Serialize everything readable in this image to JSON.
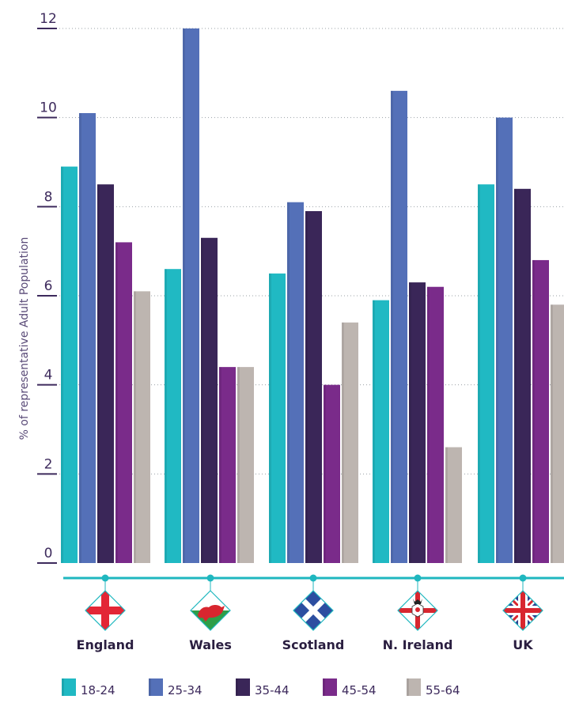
{
  "chart_data": {
    "type": "bar",
    "ylabel": "% of representative Adult Population",
    "ylim": [
      0,
      12
    ],
    "yticks": [
      0,
      2,
      4,
      6,
      8,
      10,
      12
    ],
    "grid": true,
    "legend_position": "bottom",
    "categories": [
      "England",
      "Wales",
      "Scotland",
      "N. Ireland",
      "UK"
    ],
    "flags": [
      "england-flag",
      "wales-flag",
      "scotland-flag",
      "northern-ireland-flag",
      "union-flag"
    ],
    "series": [
      {
        "name": "18-24",
        "color": "#20b9c3",
        "values": [
          8.9,
          6.6,
          6.5,
          5.9,
          8.5
        ]
      },
      {
        "name": "25-34",
        "color": "#5470b8",
        "values": [
          10.1,
          12.0,
          8.1,
          10.6,
          10.0
        ]
      },
      {
        "name": "35-44",
        "color": "#3a2658",
        "values": [
          8.5,
          7.3,
          7.9,
          6.3,
          8.4
        ]
      },
      {
        "name": "45-54",
        "color": "#7a2b8a",
        "values": [
          7.2,
          4.4,
          4.0,
          6.2,
          6.8
        ]
      },
      {
        "name": "55-64",
        "color": "#bdb5b0",
        "values": [
          6.1,
          4.4,
          5.4,
          2.6,
          5.8
        ]
      }
    ]
  }
}
